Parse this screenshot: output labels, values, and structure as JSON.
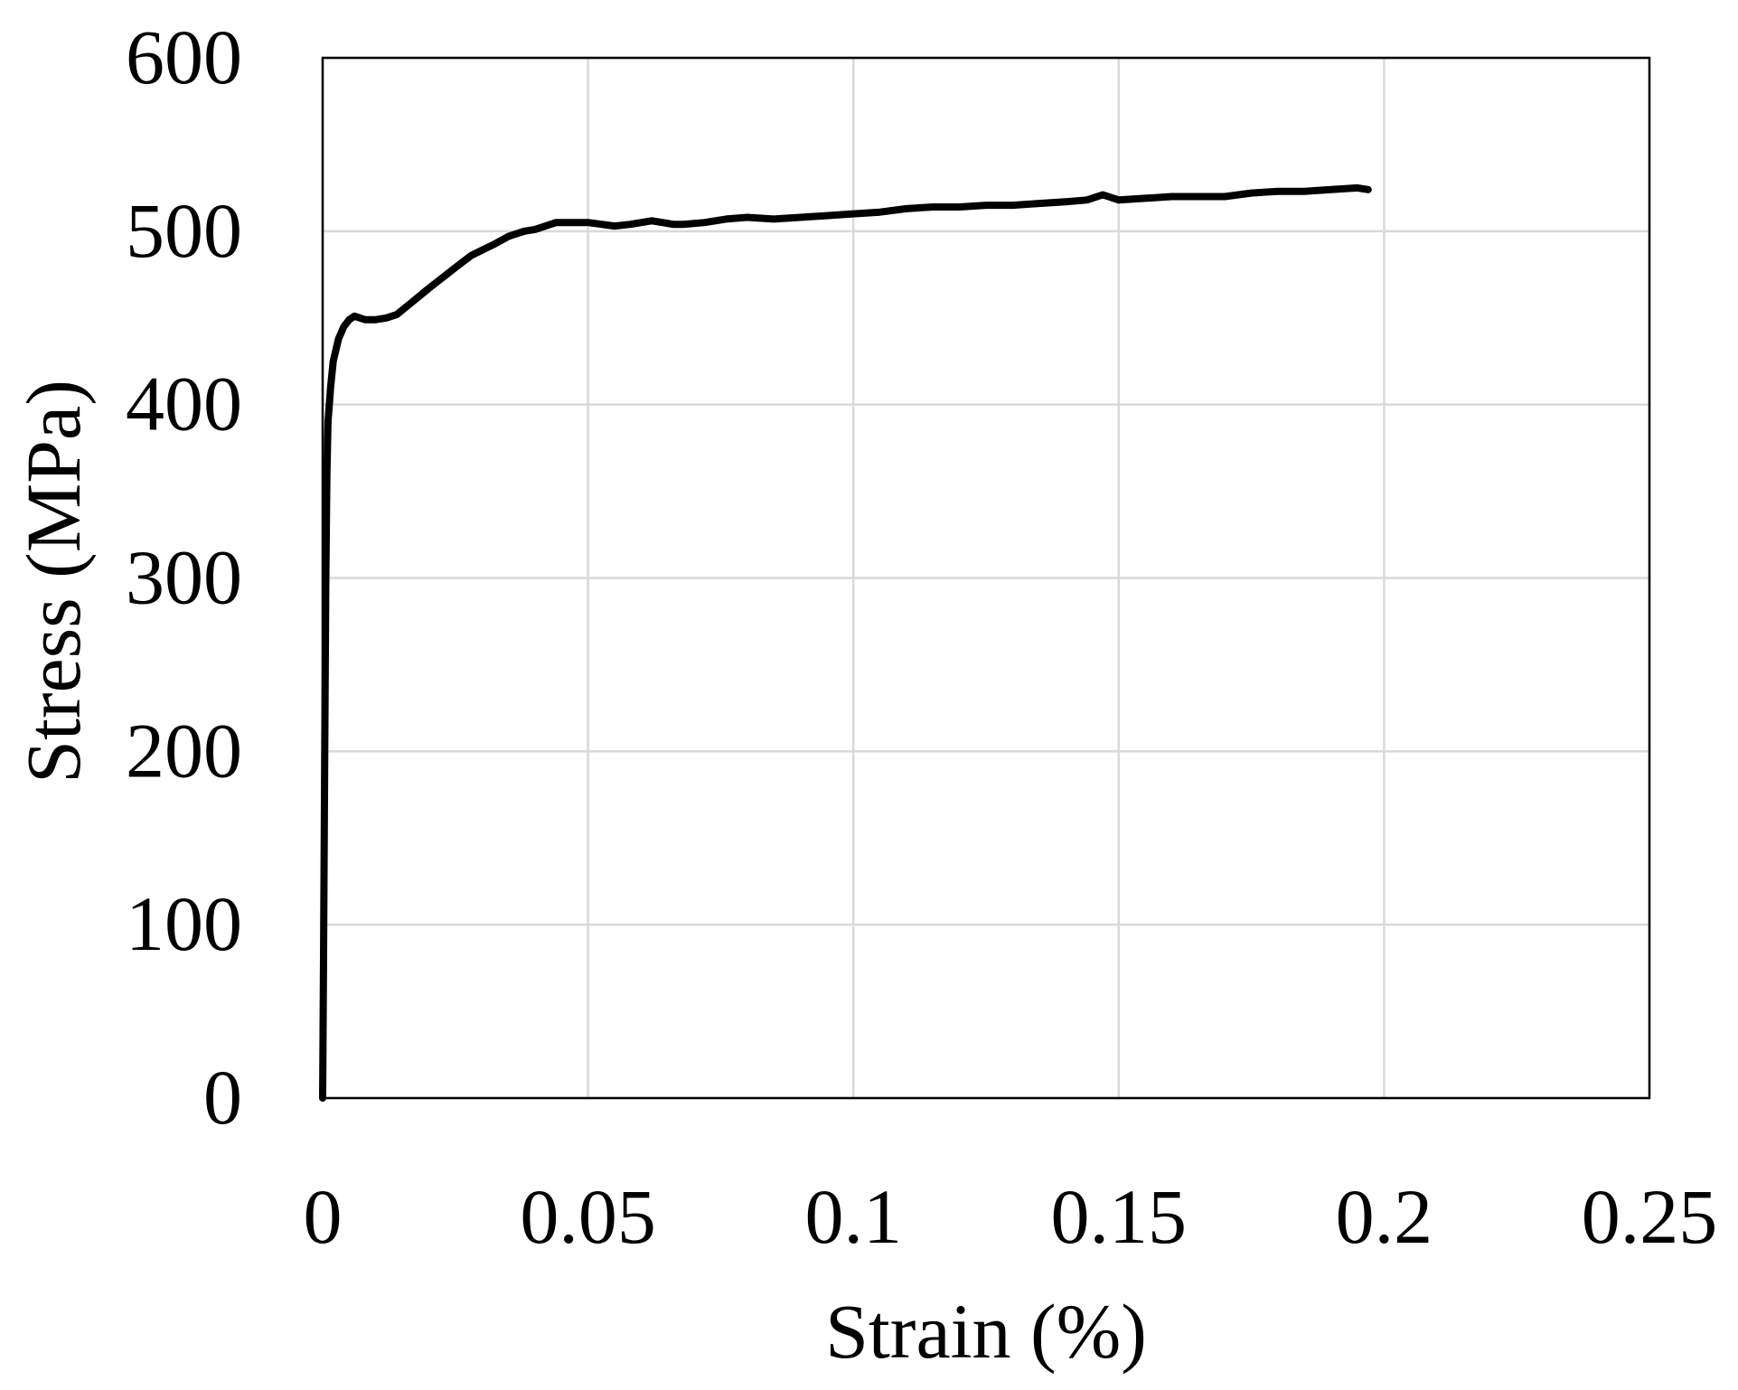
{
  "chart_data": {
    "type": "line",
    "title": "",
    "xlabel": "Strain (%)",
    "ylabel": "Stress (MPa)",
    "xlim": [
      0,
      0.25
    ],
    "ylim": [
      0,
      600
    ],
    "x_ticks": [
      0,
      0.05,
      0.1,
      0.15,
      0.2,
      0.25
    ],
    "x_tick_labels": [
      "0",
      "0.05",
      "0.1",
      "0.15",
      "0.2",
      "0.25"
    ],
    "y_ticks": [
      0,
      100,
      200,
      300,
      400,
      500,
      600
    ],
    "y_tick_labels": [
      "0",
      "100",
      "200",
      "300",
      "400",
      "500",
      "600"
    ],
    "grid": true,
    "legend": "none",
    "colors": {
      "line": "#000000",
      "grid": "#d9d9d9",
      "frame": "#000000"
    },
    "series": [
      {
        "x": [
          0,
          0.0002,
          0.0004,
          0.0006,
          0.0008,
          0.001,
          0.0015,
          0.002,
          0.003,
          0.004,
          0.005,
          0.006,
          0.007,
          0.008,
          0.01,
          0.012,
          0.014,
          0.016,
          0.02,
          0.025,
          0.028,
          0.03,
          0.032,
          0.035,
          0.038,
          0.04,
          0.042,
          0.044,
          0.046,
          0.05,
          0.055,
          0.058,
          0.062,
          0.064,
          0.066,
          0.068,
          0.072,
          0.076,
          0.08,
          0.085,
          0.09,
          0.095,
          0.1,
          0.105,
          0.11,
          0.115,
          0.12,
          0.125,
          0.13,
          0.135,
          0.14,
          0.144,
          0.147,
          0.15,
          0.155,
          0.16,
          0.165,
          0.17,
          0.175,
          0.18,
          0.185,
          0.19,
          0.195,
          0.197
        ],
        "y": [
          0,
          100,
          200,
          300,
          360,
          390,
          410,
          425,
          438,
          445,
          449,
          451,
          450,
          449,
          449,
          450,
          452,
          457,
          467,
          479,
          486,
          489,
          492,
          497,
          500,
          501,
          503,
          505,
          505,
          505,
          503,
          504,
          506,
          505,
          504,
          504,
          505,
          507,
          508,
          507,
          508,
          509,
          510,
          511,
          513,
          514,
          514,
          515,
          515,
          516,
          517,
          518,
          521,
          518,
          519,
          520,
          520,
          520,
          522,
          523,
          523,
          524,
          525,
          524
        ]
      }
    ]
  }
}
